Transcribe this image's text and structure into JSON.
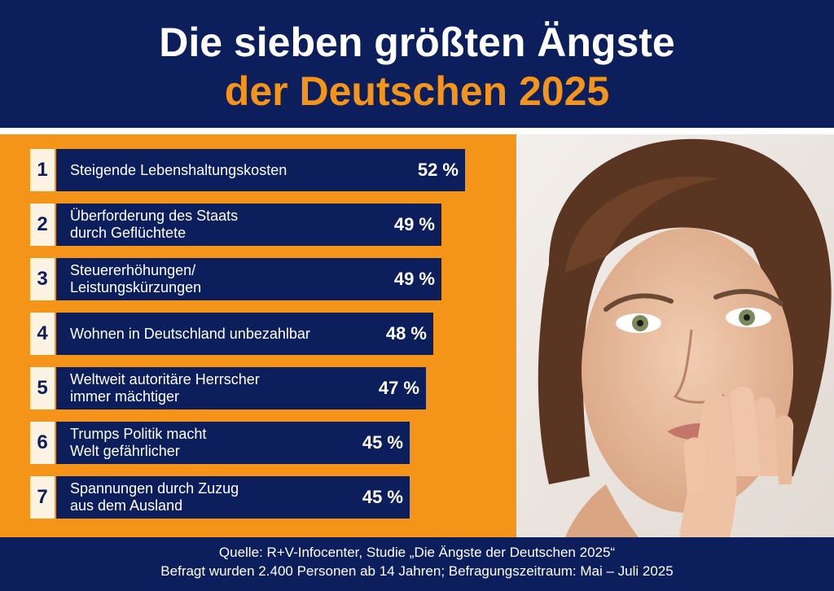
{
  "header": {
    "title_line1": "Die sieben größten Ängste",
    "title_line2": "der Deutschen 2025"
  },
  "chart_data": {
    "type": "bar",
    "orientation": "horizontal",
    "title": "Die sieben größten Ängste der Deutschen 2025",
    "unit": "%",
    "categories": [
      "Steigende Lebenshaltungskosten",
      "Überforderung des Staats\ndurch Geflüchtete",
      "Steuererhöhungen/\nLeistungskürzungen",
      "Wohnen in Deutschland unbezahlbar",
      "Weltweit autoritäre Herrscher\nimmer mächtiger",
      "Trumps Politik macht\nWelt gefährlicher",
      "Spannungen durch Zuzug\naus dem Ausland"
    ],
    "ranks": [
      "1",
      "2",
      "3",
      "4",
      "5",
      "6",
      "7"
    ],
    "values": [
      52,
      49,
      49,
      48,
      47,
      45,
      45
    ],
    "value_labels": [
      "52 %",
      "49 %",
      "49 %",
      "48 %",
      "47 %",
      "45 %",
      "45 %"
    ]
  },
  "footer": {
    "source_line1": "Quelle: R+V-Infocenter, Studie „Die Ängste der Deutschen 2025“",
    "source_line2": "Befragt wurden 2.400 Personen ab 14 Jahren; Befragungszeitraum: Mai – Juli 2025"
  },
  "colors": {
    "navy": "#0c1f5c",
    "orange": "#f4951a",
    "rank_box": "#fdf3e2"
  },
  "photo": {
    "icon": "worried-woman-photo"
  }
}
